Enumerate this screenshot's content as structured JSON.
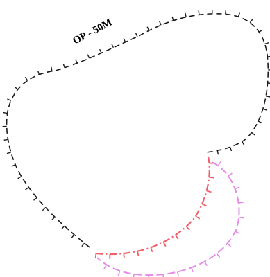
{
  "map": {
    "label": "OP - 50M",
    "lines": [
      {
        "name": "op-50m-boundary",
        "color": "#000000",
        "style": "dashed-ticked"
      },
      {
        "name": "red-dashdot-line",
        "color": "#f0606a",
        "style": "dash-dot-ticked"
      },
      {
        "name": "pink-dashed-line",
        "color": "#e48ce8",
        "style": "dashed-ticked"
      }
    ]
  }
}
